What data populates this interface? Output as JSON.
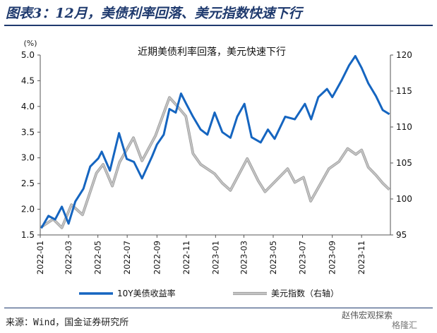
{
  "header": {
    "title": "图表3：12月，美债利率回落、美元指数快速下行"
  },
  "footer": {
    "source": "来源：Wind，国金证券研究所",
    "watermark": "赵伟宏观探索",
    "watermark2": "格隆汇"
  },
  "colors": {
    "series1": "#1565c0",
    "series2": "#c4c4c4",
    "series2_stroke": "#9a9a9a",
    "header": "#1f3a6e"
  },
  "chart_data": {
    "type": "line",
    "title": "近期美债利率回落，美元快速下行",
    "y_unit": "(%)",
    "ylim_left": [
      1.5,
      5.0
    ],
    "yticks_left": [
      "1.5",
      "2.0",
      "2.5",
      "3.0",
      "3.5",
      "4.0",
      "4.5",
      "5.0"
    ],
    "ylim_right": [
      95,
      120
    ],
    "yticks_right": [
      "95",
      "100",
      "105",
      "110",
      "115",
      "120"
    ],
    "xlim": [
      "2022-01-01",
      "2023-12-31"
    ],
    "xticks": [
      "2022-01",
      "2022-03",
      "2022-05",
      "2022-07",
      "2022-09",
      "2022-11",
      "2023-01",
      "2023-03",
      "2023-05",
      "2023-07",
      "2023-09",
      "2023-11"
    ],
    "grid": false,
    "legend": "bottom",
    "series": [
      {
        "name": "10Y美债收益率",
        "axis": "left",
        "points": [
          [
            "2022-01-03",
            1.63
          ],
          [
            "2022-01-18",
            1.87
          ],
          [
            "2022-02-01",
            1.8
          ],
          [
            "2022-02-15",
            2.05
          ],
          [
            "2022-03-01",
            1.72
          ],
          [
            "2022-03-15",
            2.15
          ],
          [
            "2022-04-01",
            2.4
          ],
          [
            "2022-04-15",
            2.83
          ],
          [
            "2022-05-02",
            2.99
          ],
          [
            "2022-05-09",
            3.12
          ],
          [
            "2022-05-26",
            2.75
          ],
          [
            "2022-06-14",
            3.48
          ],
          [
            "2022-06-30",
            2.98
          ],
          [
            "2022-07-15",
            2.92
          ],
          [
            "2022-08-01",
            2.6
          ],
          [
            "2022-08-22",
            3.03
          ],
          [
            "2022-09-01",
            3.26
          ],
          [
            "2022-09-15",
            3.45
          ],
          [
            "2022-09-27",
            3.95
          ],
          [
            "2022-10-10",
            3.88
          ],
          [
            "2022-10-21",
            4.25
          ],
          [
            "2022-11-01",
            4.05
          ],
          [
            "2022-11-15",
            3.8
          ],
          [
            "2022-12-01",
            3.55
          ],
          [
            "2022-12-15",
            3.45
          ],
          [
            "2022-12-30",
            3.88
          ],
          [
            "2023-01-15",
            3.5
          ],
          [
            "2023-02-01",
            3.39
          ],
          [
            "2023-02-15",
            3.8
          ],
          [
            "2023-03-02",
            4.05
          ],
          [
            "2023-03-17",
            3.4
          ],
          [
            "2023-04-05",
            3.3
          ],
          [
            "2023-04-20",
            3.55
          ],
          [
            "2023-05-04",
            3.37
          ],
          [
            "2023-05-26",
            3.8
          ],
          [
            "2023-06-15",
            3.75
          ],
          [
            "2023-07-06",
            4.05
          ],
          [
            "2023-07-19",
            3.75
          ],
          [
            "2023-08-03",
            4.18
          ],
          [
            "2023-08-21",
            4.34
          ],
          [
            "2023-09-01",
            4.18
          ],
          [
            "2023-09-20",
            4.5
          ],
          [
            "2023-10-06",
            4.8
          ],
          [
            "2023-10-19",
            4.98
          ],
          [
            "2023-11-01",
            4.75
          ],
          [
            "2023-11-15",
            4.45
          ],
          [
            "2023-12-01",
            4.2
          ],
          [
            "2023-12-15",
            3.93
          ],
          [
            "2023-12-29",
            3.85
          ]
        ]
      },
      {
        "name": "美元指数（右轴）",
        "axis": "right",
        "points": [
          [
            "2022-01-03",
            96.1
          ],
          [
            "2022-01-28",
            97.2
          ],
          [
            "2022-02-15",
            96.0
          ],
          [
            "2022-03-07",
            99.2
          ],
          [
            "2022-03-30",
            97.8
          ],
          [
            "2022-04-28",
            103.6
          ],
          [
            "2022-05-12",
            104.8
          ],
          [
            "2022-05-31",
            101.8
          ],
          [
            "2022-06-15",
            105.1
          ],
          [
            "2022-07-14",
            108.5
          ],
          [
            "2022-08-01",
            105.3
          ],
          [
            "2022-08-29",
            108.8
          ],
          [
            "2022-09-27",
            114.1
          ],
          [
            "2022-10-12",
            113.0
          ],
          [
            "2022-10-31",
            111.5
          ],
          [
            "2022-11-15",
            106.3
          ],
          [
            "2022-12-01",
            104.8
          ],
          [
            "2022-12-30",
            103.5
          ],
          [
            "2023-01-15",
            102.2
          ],
          [
            "2023-02-01",
            101.2
          ],
          [
            "2023-03-08",
            105.6
          ],
          [
            "2023-03-31",
            102.5
          ],
          [
            "2023-04-14",
            101.0
          ],
          [
            "2023-05-31",
            104.2
          ],
          [
            "2023-06-15",
            102.3
          ],
          [
            "2023-07-03",
            103.0
          ],
          [
            "2023-07-18",
            99.7
          ],
          [
            "2023-08-25",
            104.2
          ],
          [
            "2023-09-15",
            105.2
          ],
          [
            "2023-10-03",
            107.0
          ],
          [
            "2023-10-20",
            106.2
          ],
          [
            "2023-11-01",
            106.8
          ],
          [
            "2023-11-15",
            104.4
          ],
          [
            "2023-12-01",
            103.3
          ],
          [
            "2023-12-15",
            102.2
          ],
          [
            "2023-12-29",
            101.3
          ]
        ]
      }
    ]
  }
}
